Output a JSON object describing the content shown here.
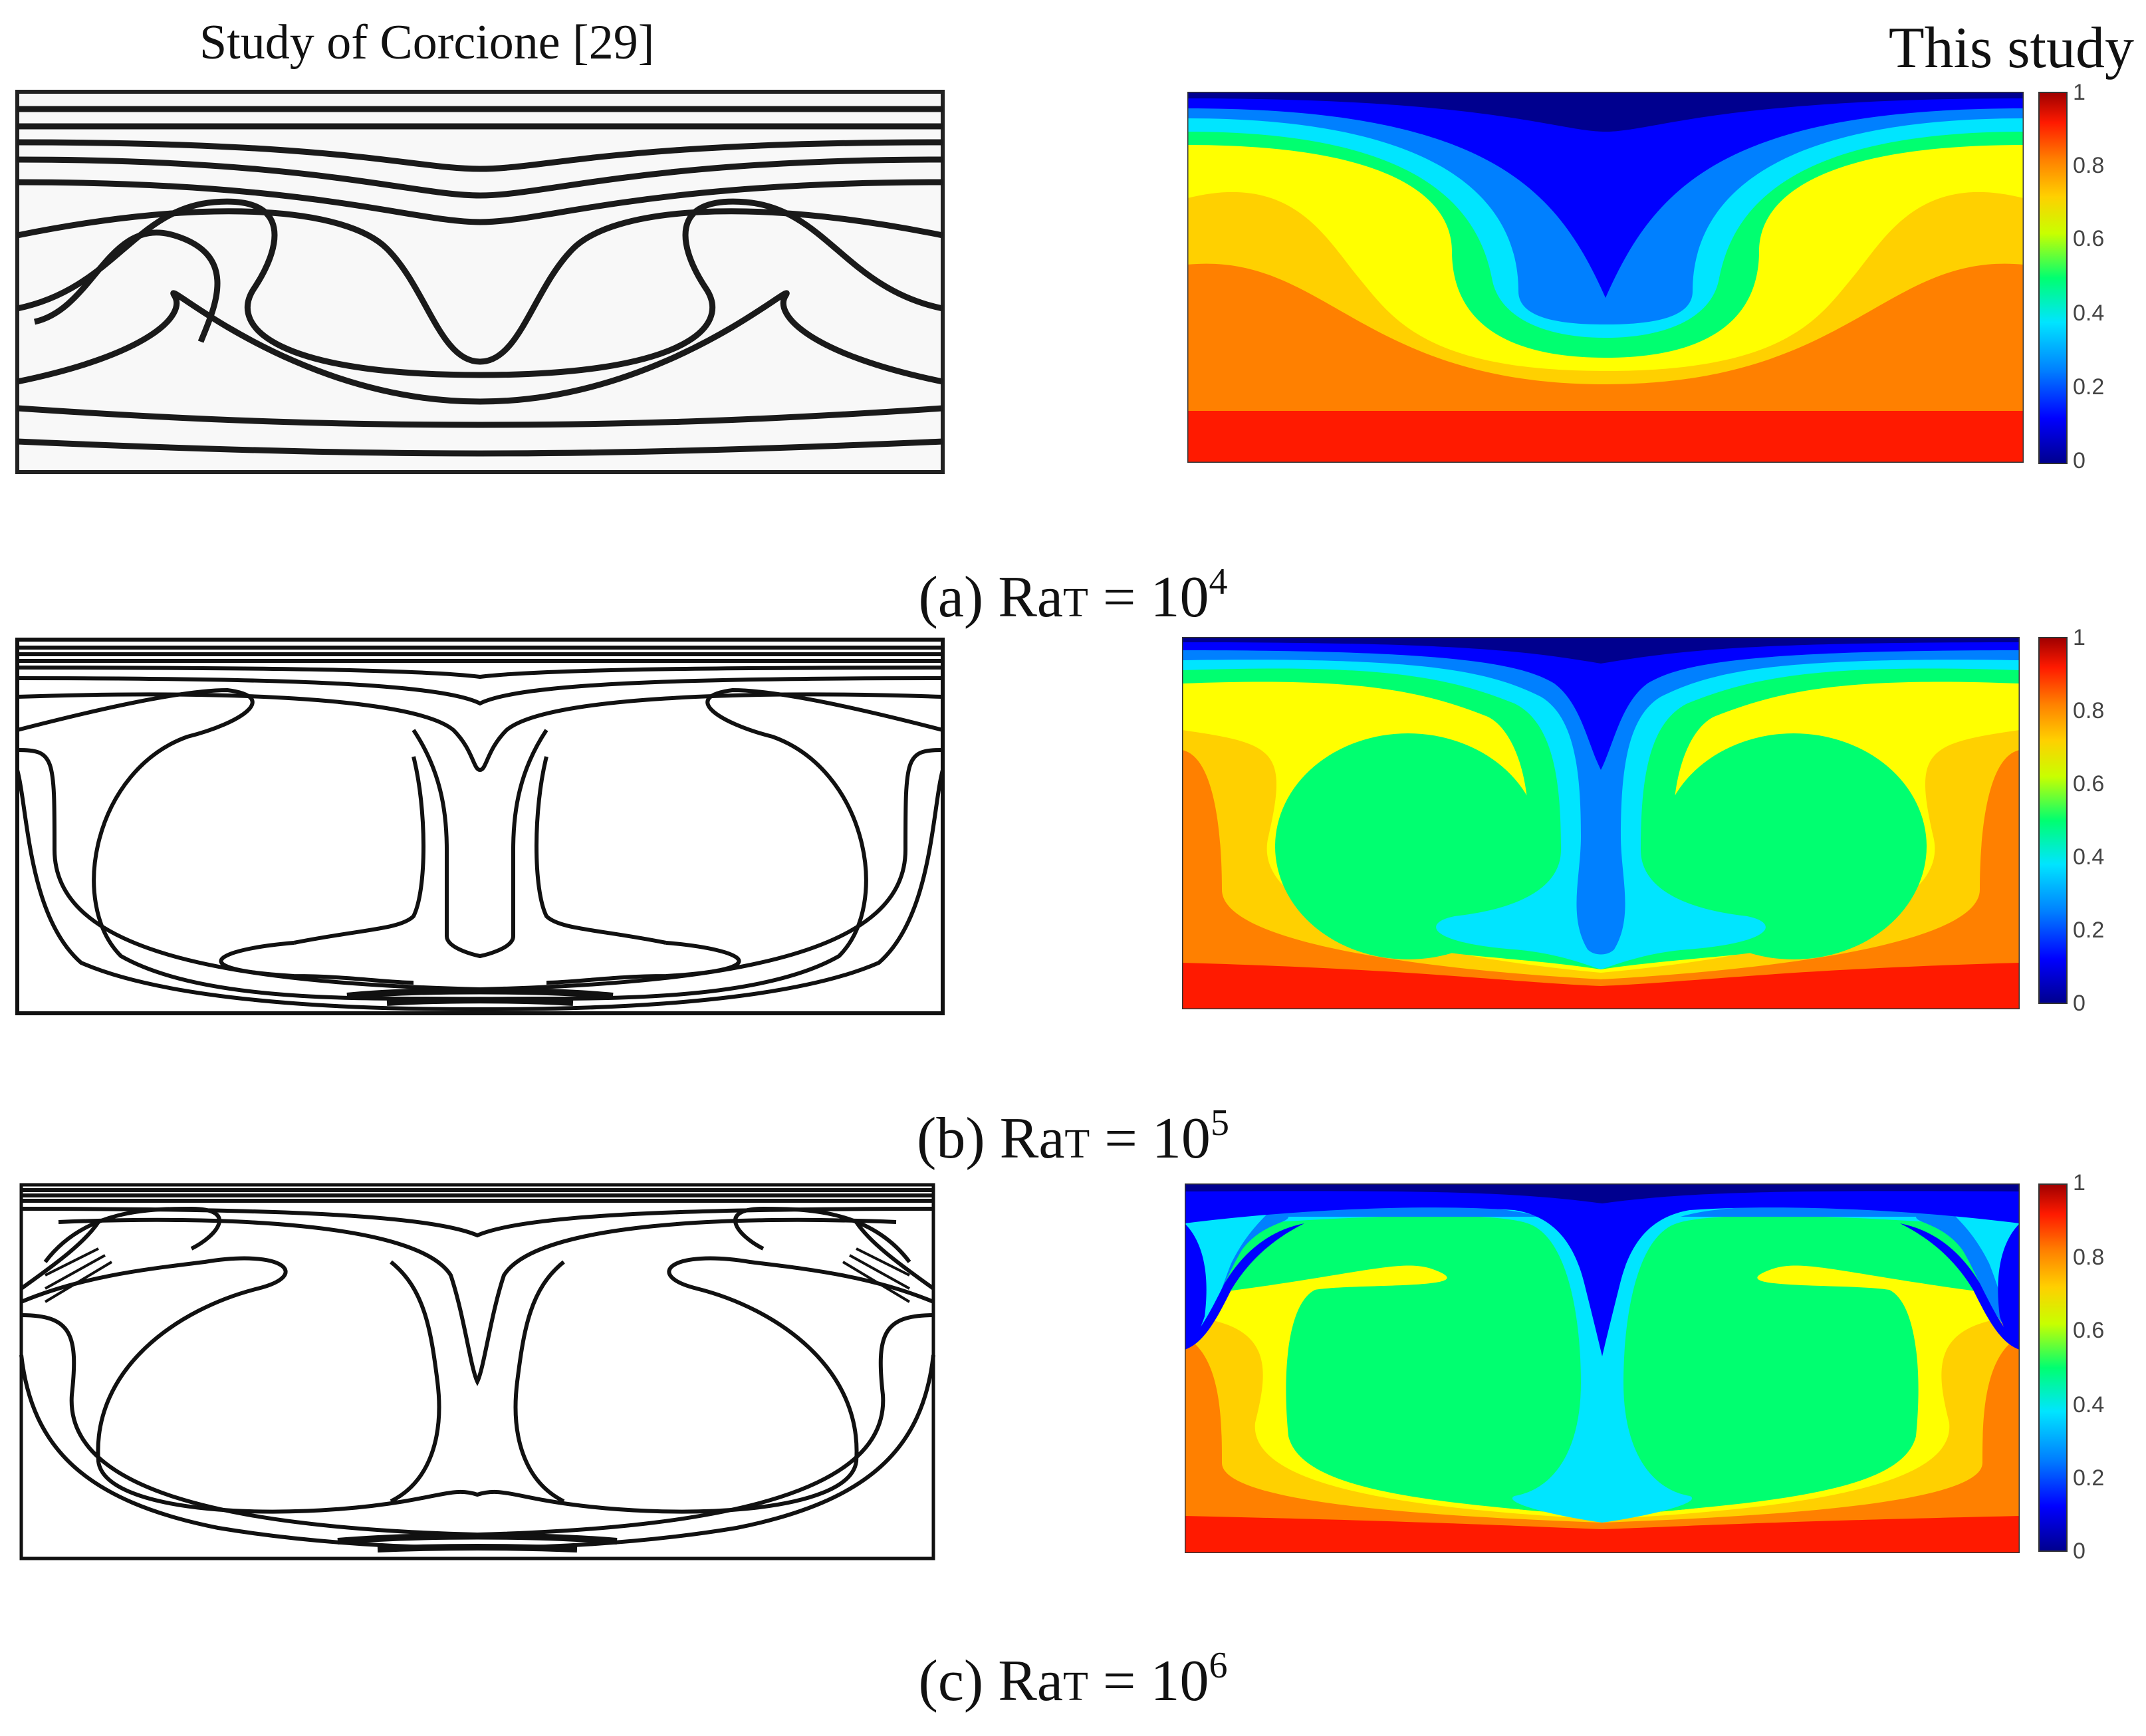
{
  "header": {
    "left_title": "Study of Corcione [29]",
    "right_title": "This study"
  },
  "rows": [
    {
      "caption_prefix": "(a) Ra",
      "caption_sub": "T",
      "caption_mid": " = 10",
      "caption_exp": "4"
    },
    {
      "caption_prefix": "(b) Ra",
      "caption_sub": "T",
      "caption_mid": " = 10",
      "caption_exp": "5"
    },
    {
      "caption_prefix": "(c) Ra",
      "caption_sub": "T",
      "caption_mid": " = 10",
      "caption_exp": "6"
    }
  ],
  "colorbar": {
    "ticks": [
      "1",
      "0.8",
      "0.6",
      "0.4",
      "0.2",
      "0"
    ],
    "colors": [
      "#00008f",
      "#0000ff",
      "#0080ff",
      "#00e5ff",
      "#00ff70",
      "#c8ff00",
      "#ffd000",
      "#ff8000",
      "#ff1a00",
      "#a00000"
    ]
  }
}
